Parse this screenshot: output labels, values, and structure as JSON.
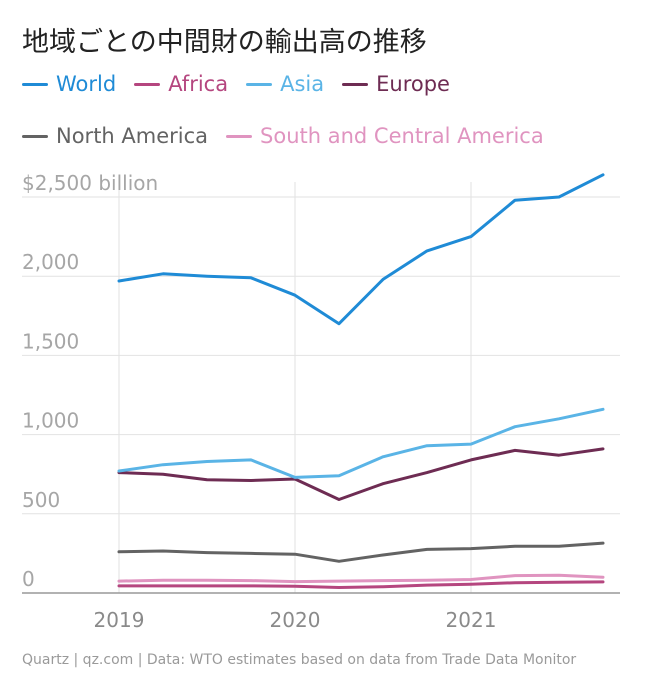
{
  "chart_data": {
    "type": "line",
    "title": "地域ごとの中間財の輸出高の推移",
    "ylabel_prefix": "$",
    "ylabel_suffix": " billion",
    "ylim": [
      0,
      2500
    ],
    "yticks": [
      {
        "value": 0,
        "label": "0"
      },
      {
        "value": 500,
        "label": "500"
      },
      {
        "value": 1000,
        "label": "1,000"
      },
      {
        "value": 1500,
        "label": "1,500"
      },
      {
        "value": 2000,
        "label": "2,000"
      },
      {
        "value": 2500,
        "label": "$2,500 billion"
      }
    ],
    "xlim": [
      2019,
      2021.75
    ],
    "xticks": [
      {
        "value": 2019,
        "label": "2019"
      },
      {
        "value": 2020,
        "label": "2020"
      },
      {
        "value": 2021,
        "label": "2021"
      }
    ],
    "x": [
      2019,
      2019.25,
      2019.5,
      2019.75,
      2020,
      2020.25,
      2020.5,
      2020.75,
      2021,
      2021.25,
      2021.5,
      2021.75
    ],
    "series": [
      {
        "name": "World",
        "color": "#1f8bd6",
        "values": [
          1970,
          2015,
          2000,
          1990,
          1880,
          1700,
          1980,
          2160,
          2250,
          2480,
          2500,
          2640
        ]
      },
      {
        "name": "Africa",
        "color": "#b5467f",
        "values": [
          45,
          45,
          45,
          45,
          42,
          35,
          40,
          50,
          55,
          65,
          68,
          70
        ]
      },
      {
        "name": "Asia",
        "color": "#5ab4e6",
        "values": [
          770,
          810,
          830,
          840,
          730,
          740,
          860,
          930,
          940,
          1050,
          1100,
          1160
        ]
      },
      {
        "name": "Europe",
        "color": "#6e2c53",
        "values": [
          760,
          750,
          715,
          710,
          720,
          590,
          690,
          760,
          840,
          900,
          870,
          910
        ]
      },
      {
        "name": "North America",
        "color": "#636363",
        "values": [
          260,
          265,
          255,
          250,
          245,
          200,
          240,
          275,
          280,
          295,
          295,
          315
        ]
      },
      {
        "name": "South and Central America",
        "color": "#e094c0",
        "values": [
          75,
          80,
          80,
          78,
          72,
          75,
          78,
          80,
          85,
          110,
          112,
          100
        ]
      }
    ]
  },
  "footer": {
    "source": "Quartz | qz.com | Data: WTO estimates based on data from Trade Data Monitor"
  }
}
